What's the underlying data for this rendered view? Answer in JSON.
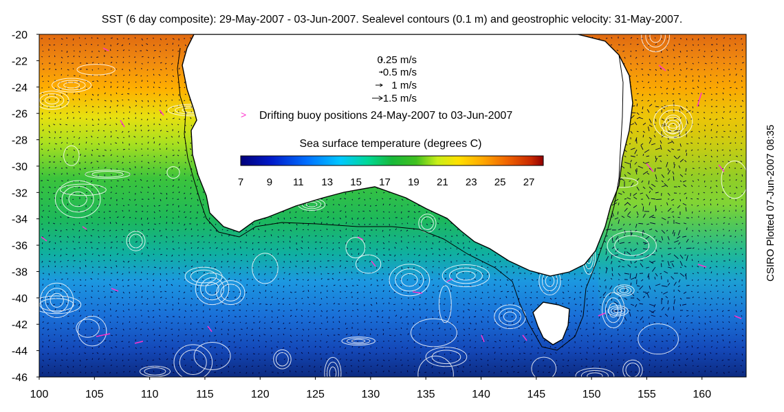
{
  "title": "SST (6 day composite): 29-May-2007 - 03-Jun-2007. Sealevel contours (0.1 m) and geostrophic velocity: 31-May-2007.",
  "side_label": "CSIRO Plotted 07-Jun-2007 08:35",
  "axes": {
    "x_ticks": [
      "100",
      "105",
      "110",
      "115",
      "120",
      "125",
      "130",
      "135",
      "140",
      "145",
      "150",
      "155",
      "160"
    ],
    "y_ticks": [
      "-20",
      "-22",
      "-24",
      "-26",
      "-28",
      "-30",
      "-32",
      "-34",
      "-36",
      "-38",
      "-40",
      "-42",
      "-44",
      "-46"
    ]
  },
  "legend": {
    "velocity": [
      {
        "label": "0.25 m/s",
        "speed": 0.25
      },
      {
        "label": "0.5 m/s",
        "speed": 0.5
      },
      {
        "label": "1 m/s",
        "speed": 1
      },
      {
        "label": "1.5 m/s",
        "speed": 1.5
      }
    ],
    "buoy_label": "Drifting buoy positions 24-May-2007 to 03-Jun-2007",
    "buoy_color": "#ff33cc"
  },
  "colorbar": {
    "title": "Sea surface temperature (degrees C)",
    "ticks": [
      "7",
      "9",
      "11",
      "13",
      "15",
      "17",
      "19",
      "21",
      "23",
      "25",
      "27"
    ],
    "range": [
      7,
      28
    ]
  },
  "colors": {
    "land": "#ffffff",
    "contour": "#ffffff",
    "coast": "#000000",
    "arrow": "#000033"
  }
}
